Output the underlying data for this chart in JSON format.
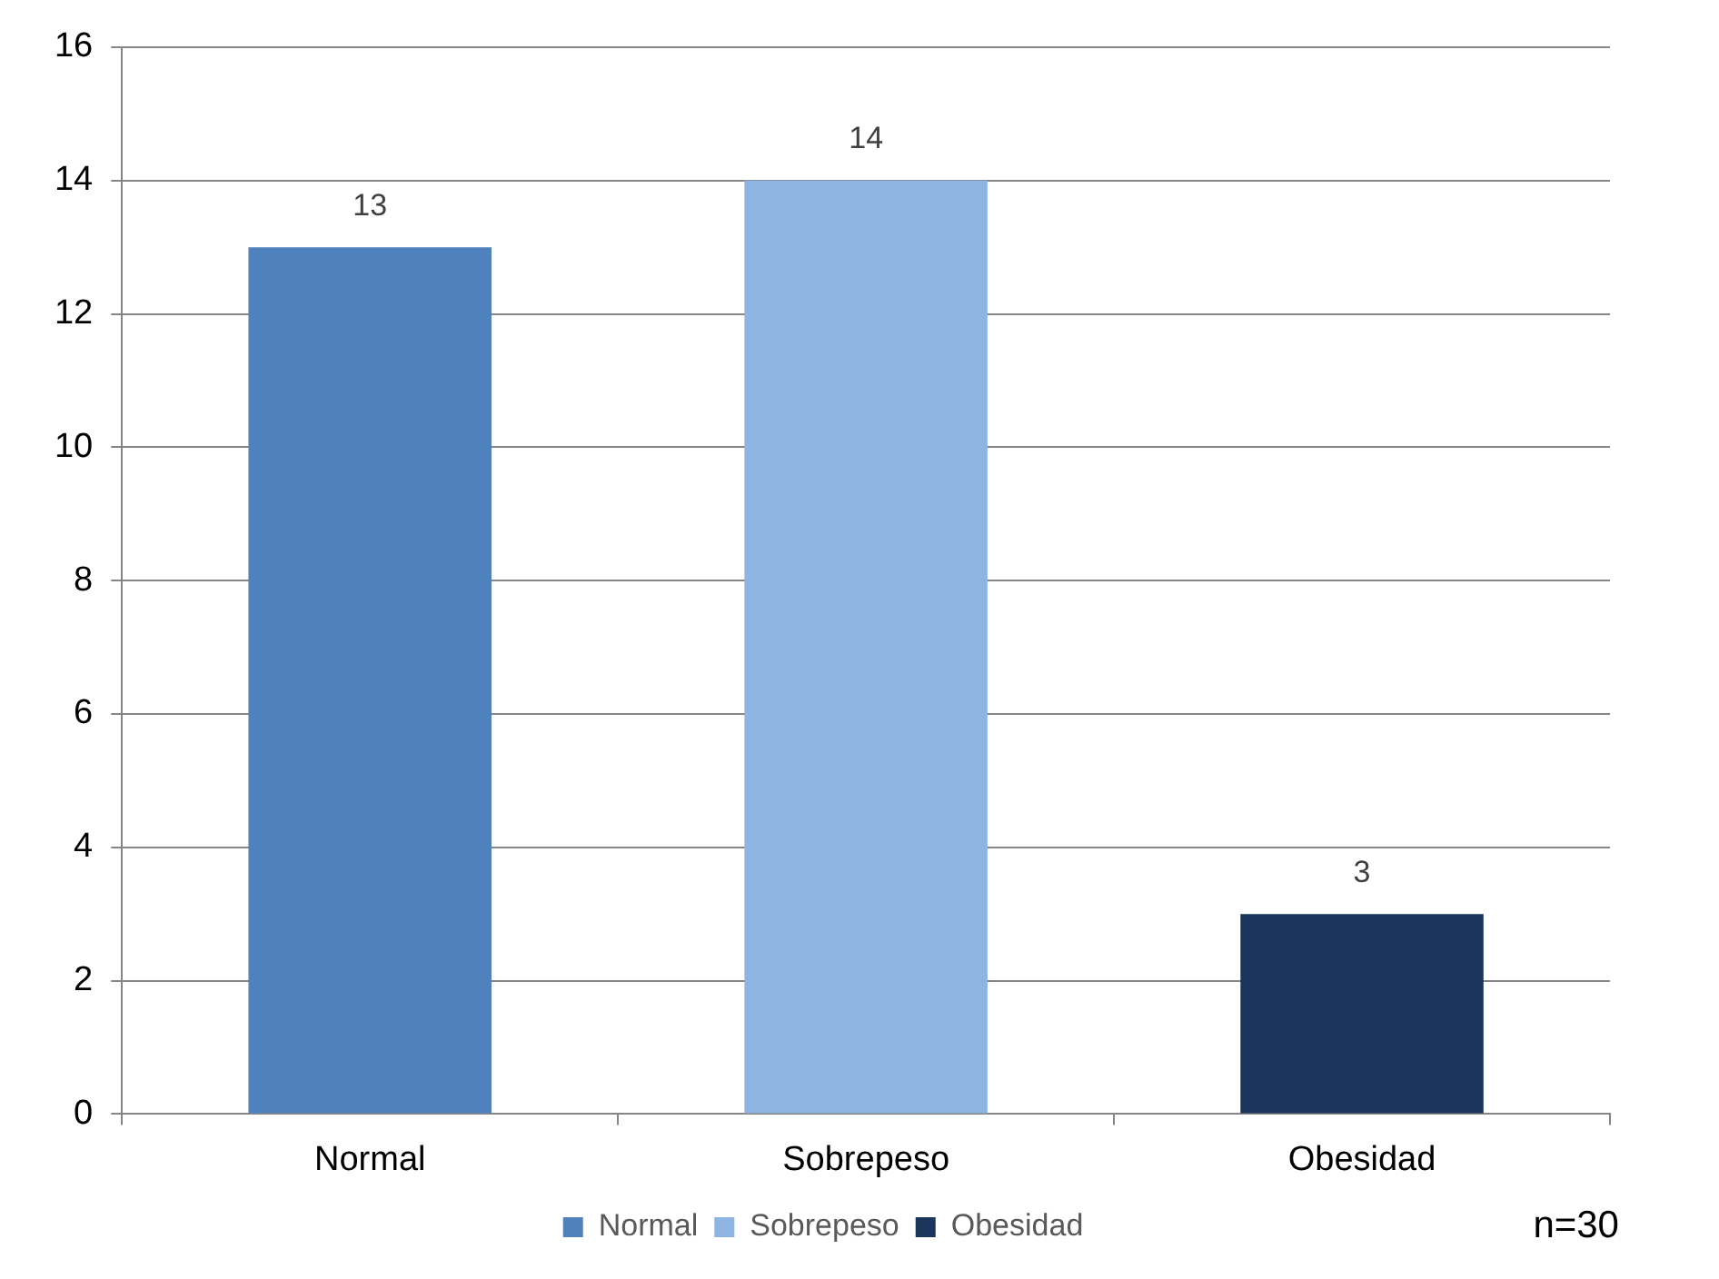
{
  "chart_data": {
    "type": "bar",
    "categories": [
      "Normal",
      "Sobrepeso",
      "Obesidad"
    ],
    "series": [
      {
        "name": "Normal",
        "color": "#4f81bd",
        "values": [
          13,
          null,
          null
        ]
      },
      {
        "name": "Sobrepeso",
        "color": "#8eb4e3",
        "values": [
          null,
          14,
          null
        ]
      },
      {
        "name": "Obesidad",
        "color": "#1b365d",
        "values": [
          null,
          null,
          3
        ]
      }
    ],
    "ylim": [
      0,
      16
    ],
    "yticks": [
      0,
      2,
      4,
      6,
      8,
      10,
      12,
      14,
      16
    ],
    "grid": "y",
    "legend": "bottom",
    "data_labels": true,
    "annotations": [
      "n=30"
    ]
  }
}
